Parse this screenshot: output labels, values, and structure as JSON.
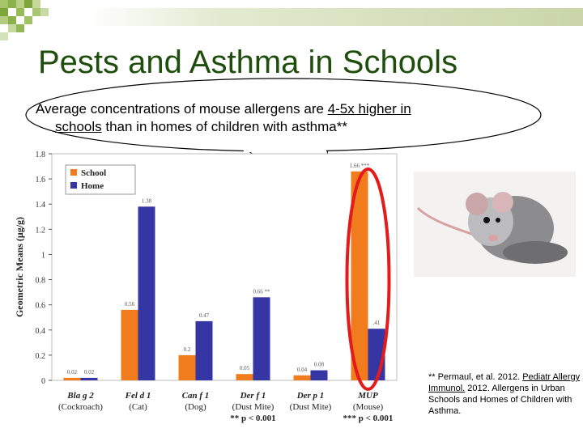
{
  "slide": {
    "title": "Pests and Asthma in Schools",
    "callout_a": "Average concentrations of mouse allergens are ",
    "callout_b": "4-5x higher in",
    "callout_c": "schools",
    "callout_d": " than in homes of children with asthma**",
    "citation_a": "** Permaul, et al. 2012. ",
    "citation_b": "Pediatr Allergy Immunol.",
    "citation_c": " 2012. Allergens in Urban Schools and Homes of Children with Asthma.",
    "colors": {
      "title": "#1e4d0c",
      "school": "#f07c1e",
      "home": "#3535a3",
      "highlight": "#e31b1b"
    },
    "image": "mouse-photo"
  },
  "chart_data": {
    "type": "bar",
    "ylabel": "Geometric Means (μg/g)",
    "ylim": [
      0,
      1.8
    ],
    "yticks": [
      "0",
      "0.2",
      "0.4",
      "0.6",
      "0.8",
      "1",
      "1.2",
      "1.4",
      "1.6",
      "1.8"
    ],
    "categories": [
      {
        "name": "Bla g 2",
        "sub": "(Cockroach)"
      },
      {
        "name": "Fel d 1",
        "sub": "(Cat)"
      },
      {
        "name": "Can f 1",
        "sub": "(Dog)"
      },
      {
        "name": "Der f 1",
        "sub": "(Dust Mite)"
      },
      {
        "name": "Der p 1",
        "sub": "(Dust Mite)"
      },
      {
        "name": "MUP",
        "sub": "(Mouse)"
      }
    ],
    "series": [
      {
        "name": "School",
        "values": [
          0.02,
          0.56,
          0.2,
          0.05,
          0.04,
          1.66
        ],
        "labels": [
          "0.02",
          "0.56",
          "0.2",
          "0.05",
          "0.04",
          "1.66 ***"
        ]
      },
      {
        "name": "Home",
        "values": [
          0.02,
          1.38,
          0.47,
          0.66,
          0.08,
          0.41
        ],
        "labels": [
          "0.02",
          "1.38",
          "0.47",
          "0.66 **",
          "0.08",
          ".41"
        ]
      }
    ],
    "legend": "top-left",
    "footnotes": [
      "** p < 0.001",
      "*** p < 0.001"
    ]
  }
}
